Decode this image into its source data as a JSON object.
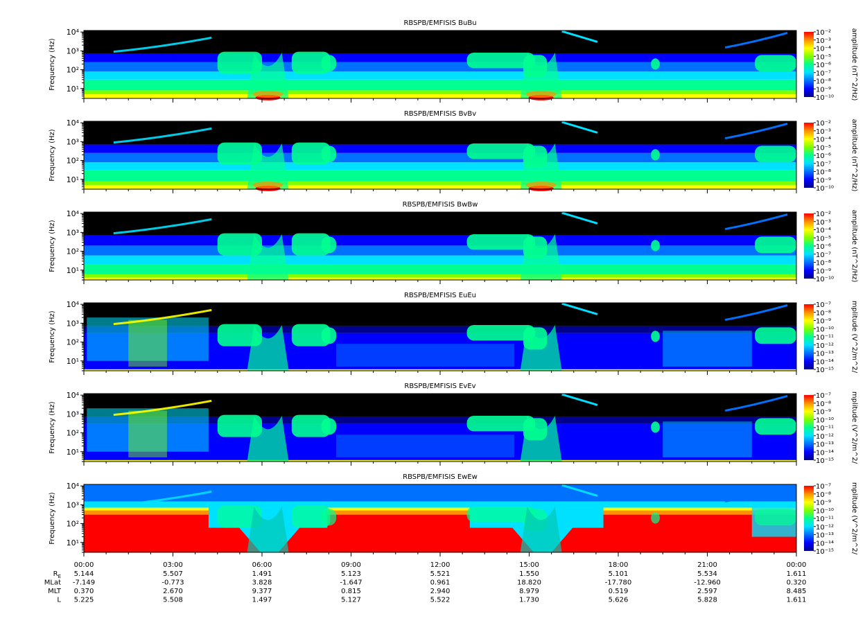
{
  "chart_data": {
    "type": "heatmap",
    "x_tick_labels": [
      "00:00",
      "03:00",
      "06:00",
      "09:00",
      "12:00",
      "15:00",
      "18:00",
      "21:00",
      "00:00"
    ],
    "y_tick_labels": [
      "10¹",
      "10²",
      "10³",
      "10⁴"
    ],
    "ylim": [
      3,
      12000
    ],
    "yscale": "log",
    "ylabel": "Frequency (Hz)",
    "colormap": [
      "#00008c",
      "#0000ff",
      "#0070ff",
      "#00e0ff",
      "#00ff90",
      "#7fff00",
      "#ffff00",
      "#ff9000",
      "#ff0000"
    ],
    "panels": [
      {
        "title": "RBSPB/EMFISIS  BuBu",
        "cbar_label": "amplitude (nT^2/Hz)",
        "cbar_ticks": [
          "10⁻²",
          "10⁻³",
          "10⁻⁴",
          "10⁻⁵",
          "10⁻⁶",
          "10⁻⁷",
          "10⁻⁸",
          "10⁻⁹",
          "10⁻¹⁰"
        ]
      },
      {
        "title": "RBSPB/EMFISIS  BvBv",
        "cbar_label": "amplitude (nT^2/Hz)",
        "cbar_ticks": [
          "10⁻²",
          "10⁻³",
          "10⁻⁴",
          "10⁻⁵",
          "10⁻⁶",
          "10⁻⁷",
          "10⁻⁸",
          "10⁻⁹",
          "10⁻¹⁰"
        ]
      },
      {
        "title": "RBSPB/EMFISIS  BwBw",
        "cbar_label": "amplitude (nT^2/Hz)",
        "cbar_ticks": [
          "10⁻²",
          "10⁻³",
          "10⁻⁴",
          "10⁻⁵",
          "10⁻⁶",
          "10⁻⁷",
          "10⁻⁸",
          "10⁻⁹",
          "10⁻¹⁰"
        ]
      },
      {
        "title": "RBSPB/EMFISIS  EuEu",
        "cbar_label": "mplitude (V^2/m^2/",
        "cbar_ticks": [
          "10⁻⁷",
          "10⁻⁸",
          "10⁻⁹",
          "10⁻¹⁰",
          "10⁻¹¹",
          "10⁻¹²",
          "10⁻¹³",
          "10⁻¹⁴",
          "10⁻¹⁵"
        ]
      },
      {
        "title": "RBSPB/EMFISIS  EvEv",
        "cbar_label": "mplitude (V^2/m^2/",
        "cbar_ticks": [
          "10⁻⁷",
          "10⁻⁸",
          "10⁻⁹",
          "10⁻¹⁰",
          "10⁻¹¹",
          "10⁻¹²",
          "10⁻¹³",
          "10⁻¹⁴",
          "10⁻¹⁵"
        ]
      },
      {
        "title": "RBSPB/EMFISIS  EwEw",
        "cbar_label": "mplitude (V^2/m^2/",
        "cbar_ticks": [
          "10⁻⁷",
          "10⁻⁸",
          "10⁻⁹",
          "10⁻¹⁰",
          "10⁻¹¹",
          "10⁻¹²",
          "10⁻¹³",
          "10⁻¹⁴",
          "10⁻¹⁵"
        ]
      }
    ],
    "ephemeris": [
      {
        "label": "R_E",
        "values": [
          "5.144",
          "5.507",
          "1.491",
          "5.123",
          "5.521",
          "1.550",
          "5.101",
          "5.534",
          "1.611"
        ]
      },
      {
        "label": "MLat",
        "values": [
          "-7.149",
          "-0.773",
          "3.828",
          "-1.647",
          "0.961",
          "18.820",
          "-17.780",
          "-12.960",
          "0.320"
        ]
      },
      {
        "label": "MLT",
        "values": [
          "0.370",
          "2.670",
          "9.377",
          "0.815",
          "2.940",
          "8.979",
          "0.519",
          "2.597",
          "8.485"
        ]
      },
      {
        "label": "L",
        "values": [
          "5.225",
          "5.508",
          "1.497",
          "5.127",
          "5.522",
          "1.730",
          "5.626",
          "5.828",
          "1.611"
        ]
      }
    ]
  }
}
